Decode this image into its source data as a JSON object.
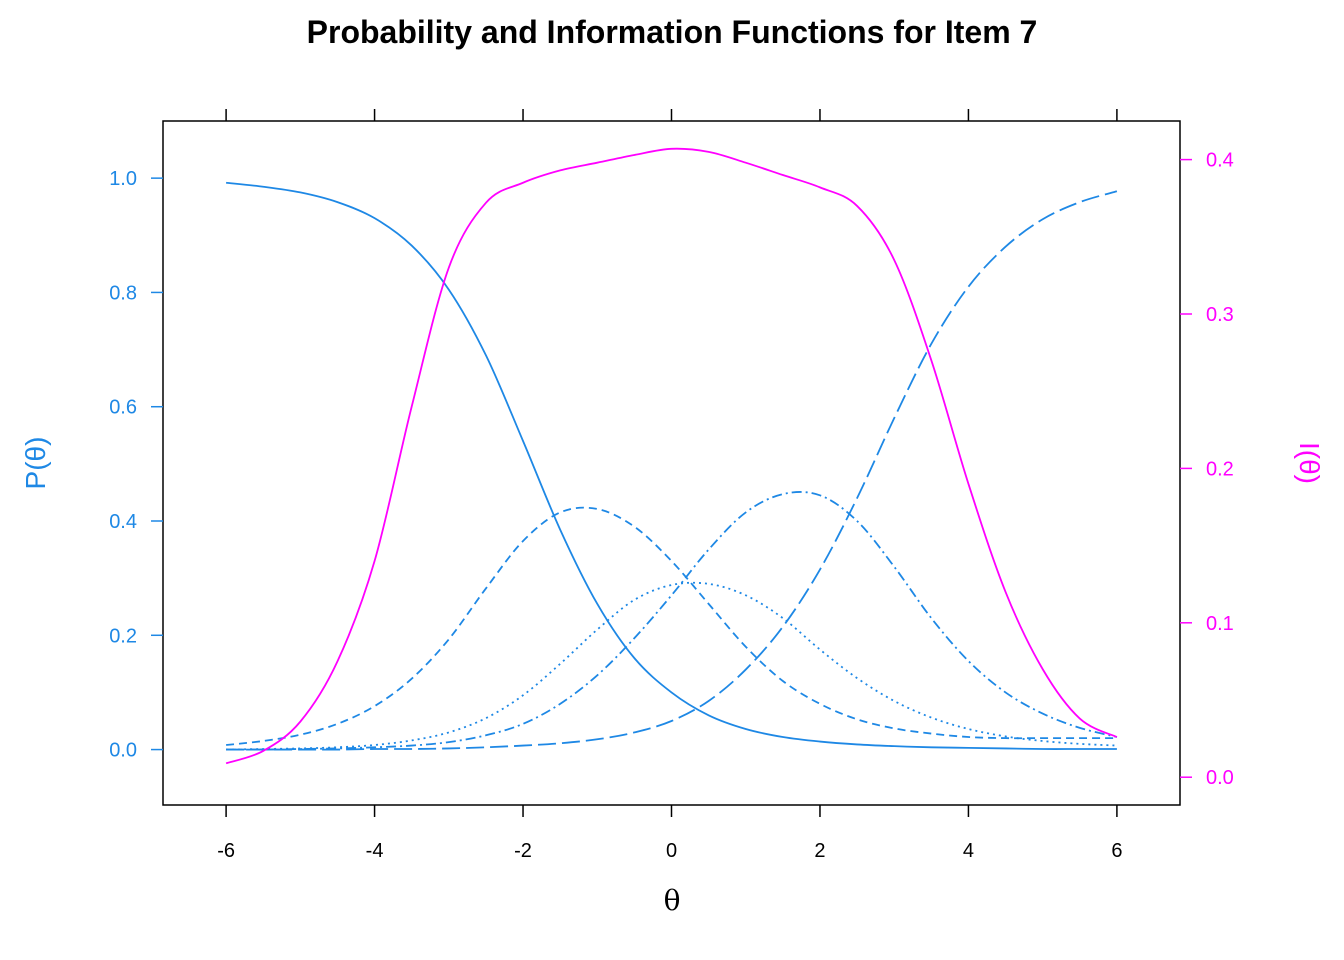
{
  "chart_data": {
    "type": "line",
    "title": "Probability and Information Functions for Item 7",
    "xlabel": "θ",
    "ylabel_left": "P(θ)",
    "ylabel_right": "I(θ)",
    "xlim": [
      -6.85,
      6.85
    ],
    "ylim_left": [
      -0.097,
      1.1
    ],
    "ylim_right": [
      -0.018,
      0.425
    ],
    "x_ticks": [
      "-6",
      "-4",
      "-2",
      "0",
      "2",
      "4",
      "6"
    ],
    "x_tick_values": [
      -6,
      -4,
      -2,
      0,
      2,
      4,
      6
    ],
    "y_left_ticks": [
      "0.0",
      "0.2",
      "0.4",
      "0.6",
      "0.8",
      "1.0"
    ],
    "y_left_tick_values": [
      0,
      0.2,
      0.4,
      0.6,
      0.8,
      1.0
    ],
    "y_right_ticks": [
      "0.0",
      "0.1",
      "0.2",
      "0.3",
      "0.4"
    ],
    "y_right_tick_values": [
      0,
      0.1,
      0.2,
      0.3,
      0.4
    ],
    "colors": {
      "probability": "#1e88e5",
      "information": "#ff00ff",
      "axis": "#000000"
    },
    "x": [
      -6,
      -5.5,
      -5,
      -4.5,
      -4,
      -3.5,
      -3,
      -2.5,
      -2,
      -1.5,
      -1,
      -0.5,
      0,
      0.5,
      1,
      1.5,
      2,
      2.5,
      3,
      3.5,
      4,
      4.5,
      5,
      5.5,
      6
    ],
    "series": [
      {
        "axis": "left",
        "dash": "solid",
        "values": [
          0.992,
          0.985,
          0.975,
          0.958,
          0.93,
          0.882,
          0.805,
          0.69,
          0.54,
          0.385,
          0.255,
          0.16,
          0.1,
          0.06,
          0.036,
          0.022,
          0.014,
          0.009,
          0.006,
          0.004,
          0.003,
          0.002,
          0.001,
          0.001,
          0.001
        ]
      },
      {
        "axis": "left",
        "dash": "dashed-short",
        "values": [
          0.008,
          0.015,
          0.026,
          0.045,
          0.076,
          0.124,
          0.193,
          0.282,
          0.365,
          0.415,
          0.421,
          0.39,
          0.33,
          0.255,
          0.18,
          0.12,
          0.08,
          0.053,
          0.037,
          0.028,
          0.022,
          0.02,
          0.02,
          0.02,
          0.02
        ]
      },
      {
        "axis": "left",
        "dash": "dotted",
        "values": [
          0.0,
          0.001,
          0.002,
          0.004,
          0.008,
          0.016,
          0.03,
          0.055,
          0.095,
          0.15,
          0.21,
          0.262,
          0.288,
          0.29,
          0.27,
          0.23,
          0.175,
          0.125,
          0.085,
          0.056,
          0.036,
          0.023,
          0.015,
          0.01,
          0.007
        ]
      },
      {
        "axis": "left",
        "dash": "dash-dot",
        "values": [
          0.0,
          0.0,
          0.001,
          0.002,
          0.004,
          0.007,
          0.013,
          0.025,
          0.045,
          0.08,
          0.13,
          0.195,
          0.27,
          0.35,
          0.415,
          0.447,
          0.445,
          0.4,
          0.32,
          0.23,
          0.155,
          0.1,
          0.063,
          0.038,
          0.022
        ]
      },
      {
        "axis": "left",
        "dash": "dashed-long",
        "values": [
          0.0,
          0.0,
          0.0,
          0.0,
          0.001,
          0.001,
          0.002,
          0.004,
          0.007,
          0.011,
          0.018,
          0.03,
          0.05,
          0.085,
          0.14,
          0.215,
          0.315,
          0.44,
          0.58,
          0.71,
          0.81,
          0.88,
          0.928,
          0.958,
          0.977
        ]
      },
      {
        "axis": "right",
        "dash": "solid",
        "values": [
          0.009,
          0.017,
          0.036,
          0.075,
          0.14,
          0.24,
          0.33,
          0.372,
          0.385,
          0.393,
          0.398,
          0.403,
          0.407,
          0.405,
          0.398,
          0.39,
          0.382,
          0.37,
          0.335,
          0.27,
          0.19,
          0.12,
          0.07,
          0.038,
          0.026
        ]
      }
    ]
  }
}
